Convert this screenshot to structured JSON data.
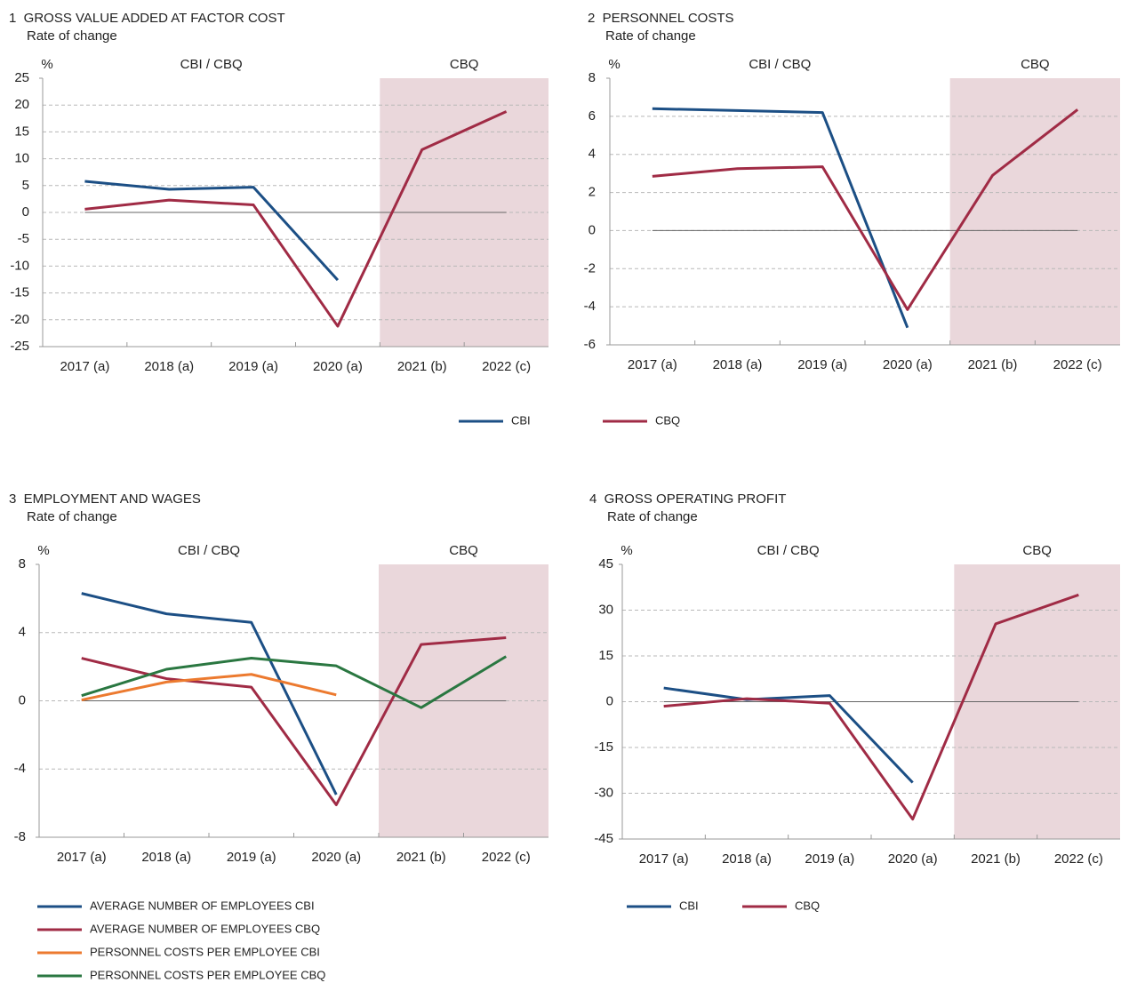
{
  "chart_data": [
    {
      "type": "line",
      "title": "1  GROSS VALUE ADDED AT FACTOR COST",
      "subtitle": "Rate of change",
      "unit": "%",
      "region_labels": [
        "CBI / CBQ",
        "CBQ"
      ],
      "shaded_start": "2021 (b)",
      "shade_color": "#ead7db",
      "zero_line": true,
      "grid": true,
      "categories": [
        "2017 (a)",
        "2018 (a)",
        "2019 (a)",
        "2020 (a)",
        "2021 (b)",
        "2022 (c)"
      ],
      "ylim": [
        -25,
        25
      ],
      "yticks": [
        -25,
        -20,
        -15,
        -10,
        -5,
        0,
        5,
        10,
        15,
        20,
        25
      ],
      "series": [
        {
          "name": "CBI",
          "color": "#1c4f85",
          "values": [
            5.8,
            4.3,
            4.7,
            -12.6,
            null,
            null
          ]
        },
        {
          "name": "CBQ",
          "color": "#a02b45",
          "values": [
            0.6,
            2.3,
            1.4,
            -21.2,
            11.7,
            18.8
          ]
        }
      ]
    },
    {
      "type": "line",
      "title": "2  PERSONNEL COSTS",
      "subtitle": "Rate of change",
      "unit": "%",
      "region_labels": [
        "CBI / CBQ",
        "CBQ"
      ],
      "shaded_start": "2021 (b)",
      "shade_color": "#ead7db",
      "zero_line": true,
      "grid": true,
      "categories": [
        "2017 (a)",
        "2018 (a)",
        "2019 (a)",
        "2020 (a)",
        "2021 (b)",
        "2022 (c)"
      ],
      "ylim": [
        -6,
        8
      ],
      "yticks": [
        -6,
        -4,
        -2,
        0,
        2,
        4,
        6,
        8
      ],
      "series": [
        {
          "color": "#1c4f85",
          "values": [
            6.4,
            6.3,
            6.2,
            -5.1,
            null,
            null
          ]
        },
        {
          "color": "#a02b45",
          "values": [
            2.85,
            3.25,
            3.35,
            -4.15,
            2.9,
            6.35
          ]
        }
      ]
    },
    {
      "type": "line",
      "title": "3  EMPLOYMENT AND WAGES",
      "subtitle": "Rate of change",
      "unit": "%",
      "region_labels": [
        "CBI / CBQ",
        "CBQ"
      ],
      "shaded_start": "2021 (b)",
      "shade_color": "#ead7db",
      "zero_line": true,
      "grid": true,
      "categories": [
        "2017 (a)",
        "2018 (a)",
        "2019 (a)",
        "2020 (a)",
        "2021 (b)",
        "2022 (c)"
      ],
      "ylim": [
        -8,
        8
      ],
      "yticks": [
        -8,
        -4,
        0,
        4,
        8
      ],
      "series": [
        {
          "name": "AVERAGE NUMBER OF EMPLOYEES CBI",
          "color": "#1c4f85",
          "values": [
            6.3,
            5.1,
            4.6,
            -5.5,
            null,
            null
          ]
        },
        {
          "name": "AVERAGE NUMBER OF EMPLOYEES CBQ",
          "color": "#a02b45",
          "values": [
            2.5,
            1.3,
            0.8,
            -6.1,
            3.3,
            3.7
          ]
        },
        {
          "name": "PERSONNEL COSTS PER EMPLOYEE CBI",
          "color": "#ec7a2f",
          "values": [
            0.05,
            1.1,
            1.55,
            0.35,
            null,
            null
          ]
        },
        {
          "name": "PERSONNEL COSTS PER EMPLOYEE CBQ",
          "color": "#2a7741",
          "values": [
            0.3,
            1.85,
            2.5,
            2.05,
            -0.4,
            2.6
          ]
        }
      ]
    },
    {
      "type": "line",
      "title": "4  GROSS OPERATING PROFIT",
      "subtitle": "Rate of change",
      "unit": "%",
      "region_labels": [
        "CBI / CBQ",
        "CBQ"
      ],
      "shaded_start": "2021 (b)",
      "shade_color": "#ead7db",
      "zero_line": true,
      "grid": true,
      "categories": [
        "2017 (a)",
        "2018 (a)",
        "2019 (a)",
        "2020 (a)",
        "2021 (b)",
        "2022 (c)"
      ],
      "ylim": [
        -45,
        45
      ],
      "yticks": [
        -45,
        -30,
        -15,
        0,
        15,
        30,
        45
      ],
      "series": [
        {
          "name": "CBI",
          "color": "#1c4f85",
          "values": [
            4.5,
            0.7,
            2,
            -26.5,
            null,
            null
          ]
        },
        {
          "name": "CBQ",
          "color": "#a02b45",
          "values": [
            -1.5,
            1.0,
            -0.5,
            -38.5,
            25.5,
            35
          ]
        }
      ]
    }
  ]
}
